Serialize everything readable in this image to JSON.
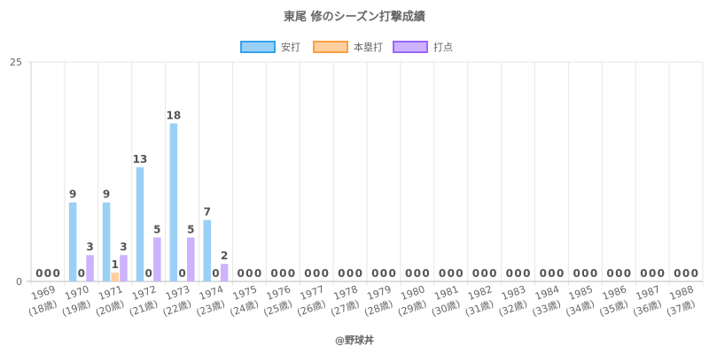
{
  "chart_data": {
    "type": "bar",
    "title": "東尾 修のシーズン打撃成績",
    "credit": "@野球丼",
    "categories": [
      "1969",
      "1970",
      "1971",
      "1972",
      "1973",
      "1974",
      "1975",
      "1976",
      "1977",
      "1978",
      "1979",
      "1980",
      "1981",
      "1982",
      "1983",
      "1984",
      "1985",
      "1986",
      "1987",
      "1988"
    ],
    "sublabels": [
      "(18歳)",
      "(19歳)",
      "(20歳)",
      "(21歳)",
      "(22歳)",
      "(23歳)",
      "(24歳)",
      "(25歳)",
      "(26歳)",
      "(27歳)",
      "(28歳)",
      "(29歳)",
      "(30歳)",
      "(31歳)",
      "(32歳)",
      "(33歳)",
      "(34歳)",
      "(35歳)",
      "(36歳)",
      "(37歳)"
    ],
    "series": [
      {
        "name": "安打",
        "fill": "#9ad0f5",
        "stroke": "#36a2eb",
        "values": [
          0,
          9,
          9,
          13,
          18,
          7,
          0,
          0,
          0,
          0,
          0,
          0,
          0,
          0,
          0,
          0,
          0,
          0,
          0,
          0
        ]
      },
      {
        "name": "本塁打",
        "fill": "#ffcf9f",
        "stroke": "#ff9f40",
        "values": [
          0,
          0,
          1,
          0,
          0,
          0,
          0,
          0,
          0,
          0,
          0,
          0,
          0,
          0,
          0,
          0,
          0,
          0,
          0,
          0
        ]
      },
      {
        "name": "打点",
        "fill": "#ccb2ff",
        "stroke": "#9966ff",
        "values": [
          0,
          3,
          3,
          5,
          5,
          2,
          0,
          0,
          0,
          0,
          0,
          0,
          0,
          0,
          0,
          0,
          0,
          0,
          0,
          0
        ]
      }
    ],
    "ylim": [
      0,
      25
    ],
    "yticks": [
      "0",
      "25"
    ],
    "legend": "top-center",
    "grid": true
  }
}
